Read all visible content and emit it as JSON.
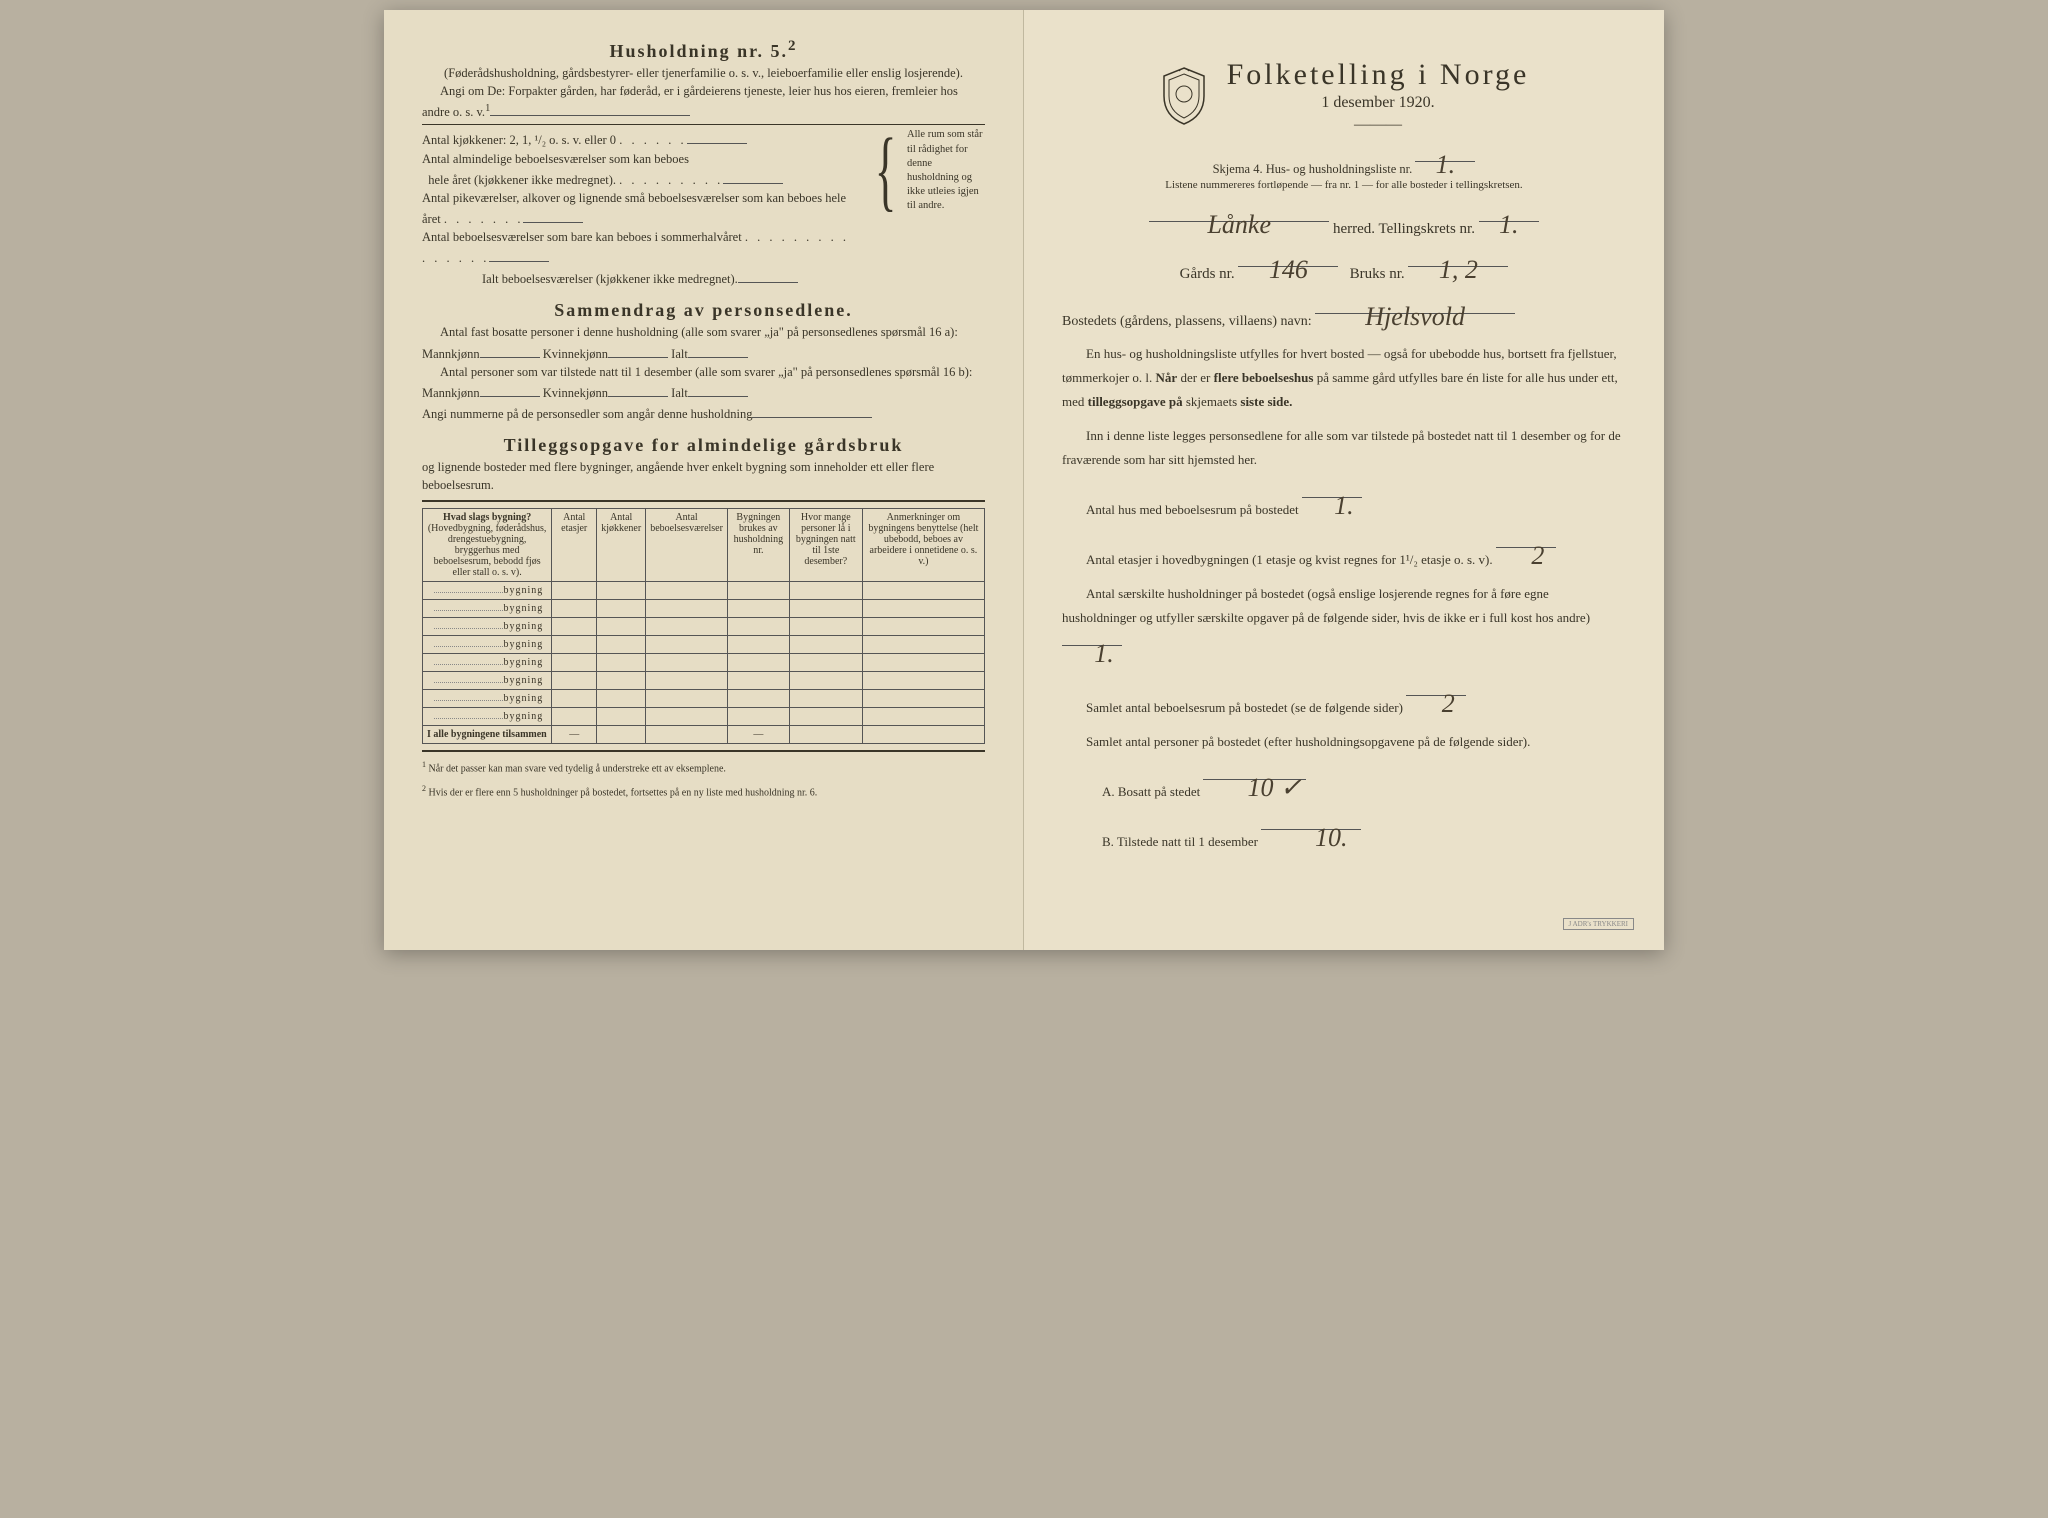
{
  "left": {
    "heading": "Husholdning nr. 5.",
    "heading_sup": "2",
    "sub1": "(Føderådshusholdning, gårdsbestyrer- eller tjenerfamilie o. s. v., leieboerfamilie eller enslig losjerende).",
    "sub2": "Angi om De: Forpakter gården, har føderåd, er i gårdeierens tjeneste, leier hus hos eieren, fremleier hos andre o. s. v.",
    "sup1": "1",
    "kitchens": "Antal kjøkkener: 2, 1, ¹/₂ o. s. v. eller 0",
    "rooms1a": "Antal almindelige beboelsesværelser som kan beboes",
    "rooms1b": "hele året (kjøkkener ikke medregnet).",
    "rooms2a": "Antal pikeværelser, alkover og lignende små beboelsesværelser som kan beboes hele året",
    "rooms3a": "Antal beboelsesværelser som bare kan beboes i sommerhalvåret",
    "rooms_total": "Ialt beboelsesværelser  (kjøkkener ikke medregnet).",
    "side_note": "Alle rum som står til rådighet for denne husholdning og ikke utleies igjen til andre.",
    "summary_heading": "Sammendrag av personsedlene.",
    "summary1": "Antal fast bosatte personer i denne husholdning (alle som svarer „ja\" på personsedlenes spørsmål 16 a): Mannkjønn",
    "kvinne": "Kvinnekjønn",
    "ialt": "Ialt",
    "summary2": "Antal personer som var tilstede natt til 1 desember (alle som svarer „ja\" på personsedlenes spørsmål 16 b): Mannkjønn",
    "summary3": "Angi nummerne på de personsedler som angår denne husholdning",
    "tillegg_heading": "Tilleggsopgave for almindelige gårdsbruk",
    "tillegg_sub": "og lignende bosteder med flere bygninger, angående hver enkelt bygning som inneholder ett eller flere beboelsesrum.",
    "table": {
      "h1a": "Hvad slags bygning?",
      "h1b": "(Hovedbygning, føderådshus, drengestuebygning, bryggerhus med beboelsesrum, bebodd fjøs eller stall o. s. v).",
      "h2": "Antal etasjer",
      "h3": "Antal kjøkkener",
      "h4": "Antal beboelsesværelser",
      "h5": "Bygningen brukes av husholdning nr.",
      "h6": "Hvor mange personer lå i bygningen natt til 1ste desember?",
      "h7": "Anmerkninger om bygningens benyttelse (helt ubebodd, beboes av arbeidere i onnetidene o. s. v.)",
      "row_label": "bygning",
      "total": "I alle bygningene tilsammen"
    },
    "footnote1": "Når det passer kan man svare ved tydelig å understreke ett av eksemplene.",
    "footnote2": "Hvis der er flere enn 5 husholdninger på bostedet, fortsettes på en ny liste med husholdning nr. 6."
  },
  "right": {
    "title": "Folketelling  i  Norge",
    "date": "1 desember 1920.",
    "skjema": "Skjema 4.   Hus- og husholdningsliste nr.",
    "skjema_val": "1.",
    "listene": "Listene nummereres fortløpende — fra nr. 1 — for alle bosteder i tellingskretsen.",
    "herred_val": "Lånke",
    "herred_label": "herred.   Tellingskrets nr.",
    "krets_val": "1.",
    "gards": "Gårds nr.",
    "gards_val": "146",
    "bruks": "Bruks nr.",
    "bruks_val": "1, 2",
    "bosted": "Bostedets (gårdens, plassens, villaens) navn:",
    "bosted_val": "Hjelsvold",
    "para1": "En hus- og husholdningsliste utfylles for hvert bosted — også for ubebodde hus, bortsett fra fjellstuer, tømmerkojer o. l.  Når der er flere beboelseshus på samme gård utfylles bare én liste for alle hus under ett, med tilleggsopgave på skjemaets siste side.",
    "para2": "Inn i denne liste legges personsedlene for alle som var tilstede på bostedet natt til 1 desember og for de fraværende som har sitt hjemsted her.",
    "q1": "Antal hus med beboelsesrum på bostedet",
    "q1_val": "1.",
    "q2a": "Antal etasjer i hovedbygningen (1 etasje og kvist regnes for 1¹/₂ etasje o. s. v).",
    "q2_val": "2",
    "q3": "Antal særskilte husholdninger på bostedet (også enslige losjerende regnes for å føre egne husholdninger og utfyller særskilte opgaver på de følgende sider, hvis de ikke er i full kost hos andre)",
    "q3_val": "1.",
    "q4": "Samlet antal beboelsesrum på bostedet (se de følgende sider)",
    "q4_val": "2",
    "q5": "Samlet antal personer på bostedet (efter husholdningsopgavene på de følgende sider).",
    "qA": "A.  Bosatt på stedet",
    "qA_val": "10 ✓",
    "qB": "B.  Tilstede natt til 1 desember",
    "qB_val": "10.",
    "stamp": "J ADR's TRYKKERI"
  },
  "colors": {
    "paper": "#e8dfc8",
    "ink": "#3a3528",
    "handwriting": "#4a4030"
  }
}
